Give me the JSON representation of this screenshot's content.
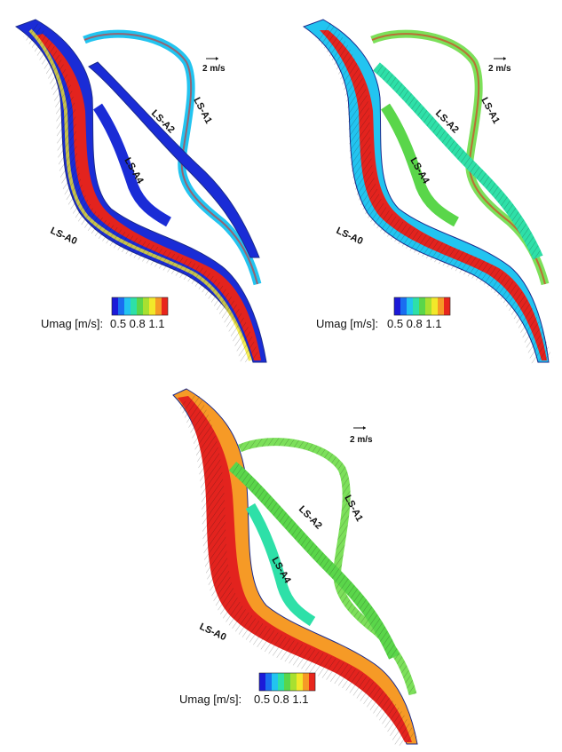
{
  "colors": {
    "low": "#1a2cd6",
    "mid": "#7ce05a",
    "high": "#e3231e",
    "outline": "#1a2a8c"
  },
  "colorbar": [
    "#1c1ad8",
    "#1a6ef0",
    "#22c4f0",
    "#2ee0a8",
    "#5ad64a",
    "#a8e030",
    "#f2e82a",
    "#f69a26",
    "#e8261c"
  ],
  "panels": [
    {
      "vector_label": "2 m/s",
      "scale_label": "Umag [m/s]:",
      "scale_ticks": "0.5 0.8 1.1",
      "branches": [
        "LS-A0",
        "LS-A1",
        "LS-A2",
        "LS-A4"
      ]
    },
    {
      "vector_label": "2 m/s",
      "scale_label": "Umag [m/s]:",
      "scale_ticks": "0.5 0.8 1.1",
      "branches": [
        "LS-A0",
        "LS-A1",
        "LS-A2",
        "LS-A4"
      ]
    },
    {
      "vector_label": "2 m/s",
      "scale_label": "Umag [m/s]:",
      "scale_ticks": "0.5 0.8 1.1",
      "branches": [
        "LS-A0",
        "LS-A1",
        "LS-A2",
        "LS-A4"
      ]
    }
  ]
}
